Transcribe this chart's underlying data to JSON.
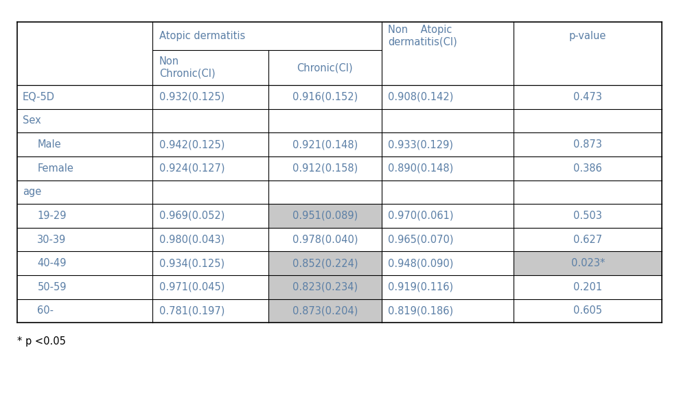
{
  "footnote": "* p <0.05",
  "rows": [
    {
      "label": "EQ-5D",
      "indent": 0,
      "values": [
        "0.932(0.125)",
        "0.916(0.152)",
        "0.908(0.142)",
        "0.473"
      ],
      "highlight": [
        false,
        false,
        false,
        false
      ],
      "section": false
    },
    {
      "label": "Sex",
      "indent": 0,
      "values": [
        "",
        "",
        "",
        ""
      ],
      "highlight": [
        false,
        false,
        false,
        false
      ],
      "section": true
    },
    {
      "label": "Male",
      "indent": 1,
      "values": [
        "0.942(0.125)",
        "0.921(0.148)",
        "0.933(0.129)",
        "0.873"
      ],
      "highlight": [
        false,
        false,
        false,
        false
      ],
      "section": false
    },
    {
      "label": "Female",
      "indent": 1,
      "values": [
        "0.924(0.127)",
        "0.912(0.158)",
        "0.890(0.148)",
        "0.386"
      ],
      "highlight": [
        false,
        false,
        false,
        false
      ],
      "section": false
    },
    {
      "label": "age",
      "indent": 0,
      "values": [
        "",
        "",
        "",
        ""
      ],
      "highlight": [
        false,
        false,
        false,
        false
      ],
      "section": true
    },
    {
      "label": "19-29",
      "indent": 1,
      "values": [
        "0.969(0.052)",
        "0.951(0.089)",
        "0.970(0.061)",
        "0.503"
      ],
      "highlight": [
        false,
        true,
        false,
        false
      ],
      "section": false
    },
    {
      "label": "30-39",
      "indent": 1,
      "values": [
        "0.980(0.043)",
        "0.978(0.040)",
        "0.965(0.070)",
        "0.627"
      ],
      "highlight": [
        false,
        false,
        false,
        false
      ],
      "section": false
    },
    {
      "label": "40-49",
      "indent": 1,
      "values": [
        "0.934(0.125)",
        "0.852(0.224)",
        "0.948(0.090)",
        "0.023*"
      ],
      "highlight": [
        false,
        true,
        false,
        true
      ],
      "section": false
    },
    {
      "label": "50-59",
      "indent": 1,
      "values": [
        "0.971(0.045)",
        "0.823(0.234)",
        "0.919(0.116)",
        "0.201"
      ],
      "highlight": [
        false,
        true,
        false,
        false
      ],
      "section": false
    },
    {
      "label": "60-",
      "indent": 1,
      "values": [
        "0.781(0.197)",
        "0.873(0.204)",
        "0.819(0.186)",
        "0.605"
      ],
      "highlight": [
        false,
        true,
        false,
        false
      ],
      "section": false
    }
  ],
  "highlight_color": "#C8C8C8",
  "border_color": "#000000",
  "text_color": "#5B7FA6",
  "bg_color": "#FFFFFF",
  "font_size": 10.5,
  "fig_width": 9.89,
  "fig_height": 5.77
}
